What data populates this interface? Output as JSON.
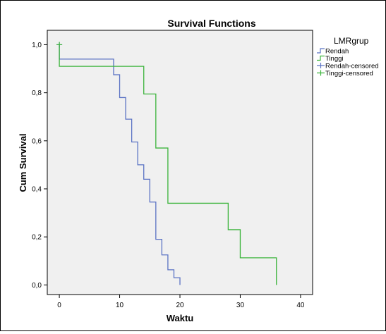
{
  "chart_data": {
    "type": "line",
    "title": "Survival Functions",
    "xlabel": "Waktu",
    "ylabel": "Cum Survival",
    "xlim": [
      -2,
      42
    ],
    "ylim": [
      -0.04,
      1.06
    ],
    "x_ticks": [
      0,
      10,
      20,
      30,
      40
    ],
    "y_ticks": [
      0.0,
      0.2,
      0.4,
      0.6,
      0.8,
      1.0
    ],
    "x_tick_labels": [
      "0",
      "10",
      "20",
      "30",
      "40"
    ],
    "y_tick_labels": [
      "0,0",
      "0,2",
      "0,4",
      "0,6",
      "0,8",
      "1,0"
    ],
    "legend_title": "LMRgrup",
    "legend_position": "right",
    "legend_entries": [
      "Rendah",
      "Tinggi",
      "Rendah-censored",
      "Tinggi-censored"
    ],
    "plot_background": "#f0f0f0",
    "series": [
      {
        "name": "Rendah",
        "color": "#5b73c4",
        "x": [
          0,
          9,
          10,
          11,
          12,
          13,
          14,
          15,
          16,
          17,
          18,
          19,
          20
        ],
        "y": [
          0.94,
          0.875,
          0.78,
          0.69,
          0.595,
          0.5,
          0.44,
          0.345,
          0.19,
          0.125,
          0.063,
          0.03,
          0.0
        ]
      },
      {
        "name": "Tinggi",
        "color": "#3cb43c",
        "x": [
          0,
          14,
          16,
          18,
          28,
          30,
          36
        ],
        "y": [
          0.91,
          0.795,
          0.57,
          0.34,
          0.23,
          0.113,
          0.0
        ]
      }
    ],
    "censored": [
      {
        "name": "Rendah-censored",
        "color": "#5b73c4",
        "x": [
          0
        ],
        "y": [
          1.0
        ]
      },
      {
        "name": "Tinggi-censored",
        "color": "#3cb43c",
        "x": [
          0
        ],
        "y": [
          1.0
        ]
      }
    ]
  }
}
